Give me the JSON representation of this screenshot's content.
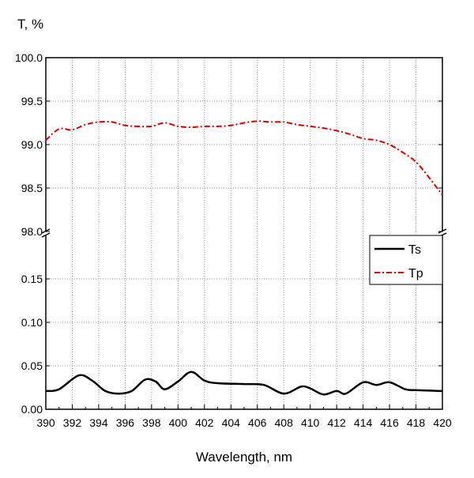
{
  "chart_data": {
    "type": "line",
    "title": "",
    "xlabel": "Wavelength, nm",
    "ylabel": "T, %",
    "xlim": [
      390,
      420
    ],
    "xticks": [
      "390",
      "392",
      "394",
      "396",
      "398",
      "400",
      "402",
      "404",
      "406",
      "408",
      "410",
      "412",
      "414",
      "416",
      "418",
      "420"
    ],
    "y_upper": {
      "ylim": [
        98.0,
        100.0
      ],
      "ticks": [
        "98.0",
        "98.5",
        "99.0",
        "99.5",
        "100.0"
      ]
    },
    "y_lower": {
      "ylim": [
        0.0,
        0.2
      ],
      "ticks": [
        "0.00",
        "0.05",
        "0.10",
        "0.15"
      ]
    },
    "axis_break": true,
    "grid": true,
    "legend_position": "right-middle",
    "series": [
      {
        "name": "Ts",
        "color": "#000000",
        "style": "solid",
        "axis": "lower",
        "x": [
          390,
          391,
          392.5,
          393.5,
          394.5,
          395.5,
          396.5,
          397.5,
          398.3,
          399,
          400,
          401,
          402,
          403,
          405,
          406.5,
          408,
          409.3,
          410,
          411,
          412,
          412.7,
          414,
          415,
          416,
          417.2,
          418,
          420
        ],
        "y": [
          0.021,
          0.023,
          0.039,
          0.033,
          0.021,
          0.018,
          0.021,
          0.034,
          0.032,
          0.023,
          0.032,
          0.043,
          0.033,
          0.03,
          0.029,
          0.028,
          0.018,
          0.026,
          0.024,
          0.017,
          0.021,
          0.018,
          0.031,
          0.028,
          0.031,
          0.023,
          0.022,
          0.021
        ]
      },
      {
        "name": "Tp",
        "color": "#e00000",
        "style": "dash-dot",
        "axis": "upper",
        "x": [
          390,
          391,
          392,
          393,
          394,
          395,
          396,
          397,
          398,
          399,
          400,
          401,
          402,
          403,
          404,
          405,
          406,
          407,
          408,
          409,
          410,
          411,
          412,
          413,
          414,
          415,
          416,
          417,
          418,
          419,
          420
        ],
        "y": [
          99.05,
          99.18,
          99.17,
          99.23,
          99.26,
          99.26,
          99.22,
          99.21,
          99.21,
          99.25,
          99.21,
          99.2,
          99.21,
          99.21,
          99.22,
          99.25,
          99.27,
          99.26,
          99.26,
          99.23,
          99.21,
          99.19,
          99.16,
          99.12,
          99.07,
          99.05,
          99.0,
          98.91,
          98.8,
          98.62,
          98.42
        ]
      }
    ]
  }
}
